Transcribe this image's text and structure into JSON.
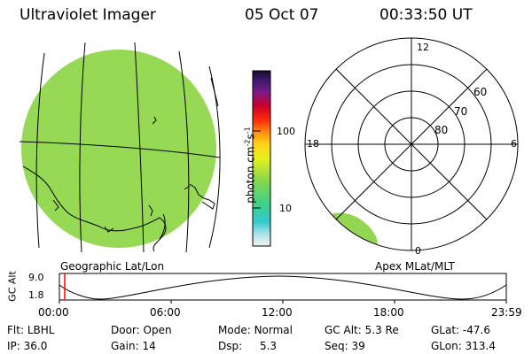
{
  "header": {
    "instrument": "Ultraviolet Imager",
    "date": "05 Oct 07",
    "time": "00:33:50 UT"
  },
  "panels": {
    "left_label": "Geographic Lat/Lon",
    "right_label": "Apex MLat/MLT"
  },
  "colorbar": {
    "unit_prefix": "photon cm",
    "unit_exp1": "-2",
    "unit_mid": "s",
    "unit_exp2": "-1",
    "ticks": [
      "100",
      "10"
    ]
  },
  "polar_plot": {
    "mlt_labels": {
      "top": "12",
      "left": "18",
      "right": "6",
      "bottom": "0"
    },
    "lat_labels": [
      "60",
      "70",
      "80"
    ]
  },
  "altitude_strip": {
    "ylabel": "GC Alt",
    "ymax": "9.0",
    "ymin": "1.8",
    "x_ticks": [
      "00:00",
      "06:00",
      "12:00",
      "18:00",
      "23:59"
    ]
  },
  "info": {
    "flt_label": "Flt:",
    "flt_value": "LBHL",
    "ip_label": "IP:",
    "ip_value": "36.0",
    "door_label": "Door:",
    "door_value": "Open",
    "gain_label": "Gain:",
    "gain_value": "14",
    "mode_label": "Mode:",
    "mode_value": "Normal",
    "dsp_label": "Dsp:",
    "dsp_value": "5.3",
    "gcalt_label": "GC Alt:",
    "gcalt_value": "5.3 Re",
    "seq_label": "Seq:",
    "seq_value": "39",
    "glat_label": "GLat:",
    "glat_value": "-47.6",
    "glon_label": "GLon:",
    "glon_value": "313.4"
  },
  "colors": {
    "aurora_green": "#8fd44a",
    "marker_red": "#ff0000"
  }
}
